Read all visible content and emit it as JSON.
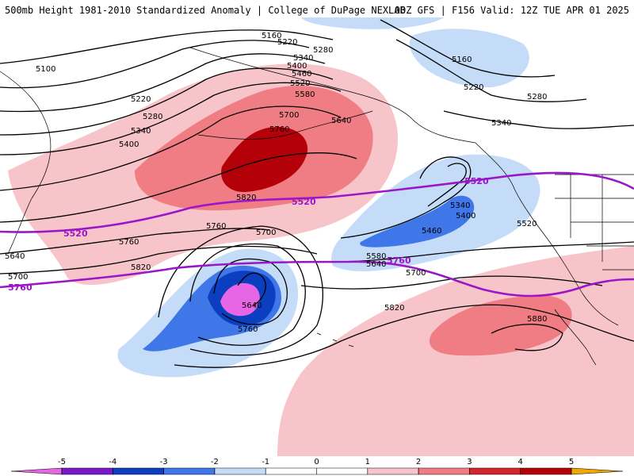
{
  "header": {
    "title_left": "500mb Height 1981-2010 Standardized Anomaly | College of DuPage NEXLAB",
    "title_right": "00Z GFS | F156 Valid: 12Z TUE APR 01 2025"
  },
  "colors": {
    "anom_neg5": "#e766e6",
    "anom_neg4": "#7d18c7",
    "anom_neg3": "#0b3fbf",
    "anom_neg2": "#3f77e8",
    "anom_neg1": "#c4dcf7",
    "anom_pos1": "#f7c5c9",
    "anom_pos2": "#ef7d83",
    "anom_pos3": "#d4252e",
    "anom_pos4": "#b40009",
    "anom_pos5": "#f3a500",
    "highlight_contour": "#9b16c8",
    "contour": "#000000"
  },
  "contour_labels": [
    "5100",
    "5160",
    "5160",
    "5220",
    "5220",
    "5220",
    "5280",
    "5280",
    "5280",
    "5340",
    "5340",
    "5340",
    "5340",
    "5400",
    "5400",
    "5400",
    "5460",
    "5460",
    "5520",
    "5520",
    "5580",
    "5580",
    "5640",
    "5640",
    "5640",
    "5640",
    "5700",
    "5700",
    "5700",
    "5700",
    "5760",
    "5760",
    "5760",
    "5760",
    "5820",
    "5820",
    "5820",
    "5880"
  ],
  "highlight_labels": [
    "5520",
    "5520",
    "5520",
    "5760",
    "5760"
  ],
  "colorbar": {
    "ticks": [
      "-5",
      "-4",
      "-3",
      "-2",
      "-1",
      "0",
      "1",
      "2",
      "3",
      "4",
      "5"
    ]
  }
}
